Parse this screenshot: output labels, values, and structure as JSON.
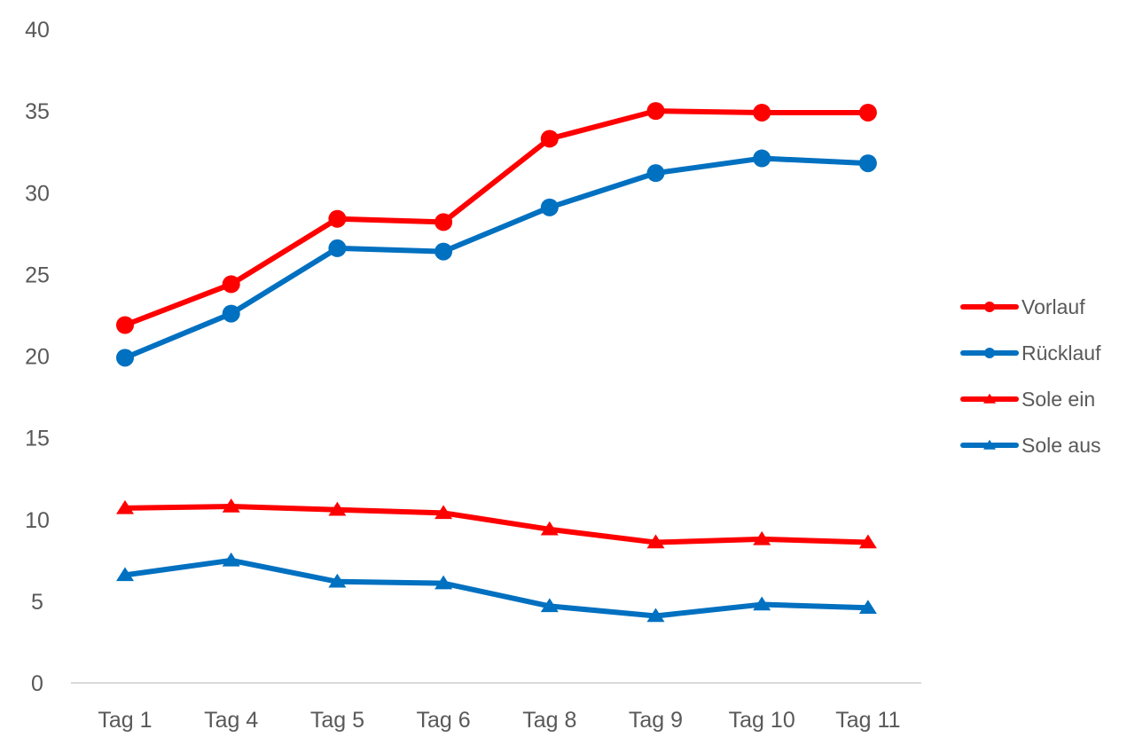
{
  "chart_data": {
    "type": "line",
    "title": "",
    "xlabel": "",
    "ylabel": "",
    "categories": [
      "Tag 1",
      "Tag 4",
      "Tag 5",
      "Tag 6",
      "Tag 8",
      "Tag 9",
      "Tag 10",
      "Tag 11"
    ],
    "ylim": [
      0,
      40
    ],
    "yticks": [
      "0",
      "5",
      "10",
      "15",
      "20",
      "25",
      "30",
      "35",
      "40"
    ],
    "grid": false,
    "legend_position": "right",
    "series": [
      {
        "name": "Vorlauf",
        "marker": "circle",
        "color": "#ff0000",
        "values": [
          21.9,
          24.4,
          28.4,
          28.2,
          33.3,
          35.0,
          34.9,
          34.9
        ]
      },
      {
        "name": "Rücklauf",
        "marker": "circle",
        "color": "#0070c0",
        "values": [
          19.9,
          22.6,
          26.6,
          26.4,
          29.1,
          31.2,
          32.1,
          31.8
        ]
      },
      {
        "name": "Sole ein",
        "marker": "triangle",
        "color": "#ff0000",
        "values": [
          10.7,
          10.8,
          10.6,
          10.4,
          9.4,
          8.6,
          8.8,
          8.6
        ]
      },
      {
        "name": "Sole aus",
        "marker": "triangle",
        "color": "#0070c0",
        "values": [
          6.6,
          7.5,
          6.2,
          6.1,
          4.7,
          4.1,
          4.8,
          4.6
        ]
      }
    ]
  }
}
